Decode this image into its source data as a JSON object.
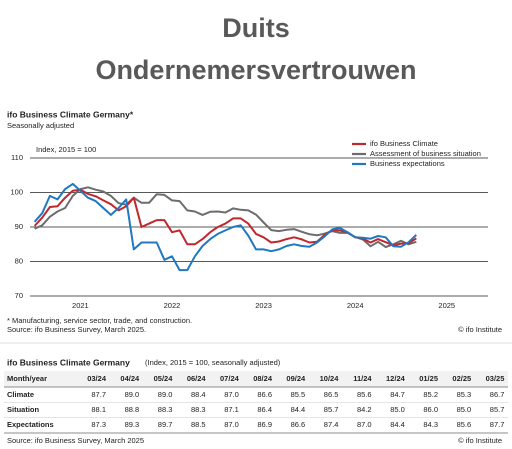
{
  "header": {
    "title_line1": "Duits",
    "title_line2": "Ondernemersvertrouwen"
  },
  "chart_data": {
    "type": "line",
    "title": "ifo Business Climate Germany*",
    "subtitle": "Seasonally adjusted",
    "y_label": "Index, 2015 = 100",
    "footnote": "* Manufacturing, service sector, trade, and construction.",
    "source": "Source: ifo Business Survey, March 2025.",
    "credit": "© ifo Institute",
    "x": [
      2021,
      2021.083,
      2021.167,
      2021.25,
      2021.333,
      2021.417,
      2021.5,
      2021.583,
      2021.667,
      2021.75,
      2021.833,
      2021.917,
      2022,
      2022.083,
      2022.167,
      2022.25,
      2022.333,
      2022.417,
      2022.5,
      2022.583,
      2022.667,
      2022.75,
      2022.833,
      2022.917,
      2023,
      2023.083,
      2023.167,
      2023.25,
      2023.333,
      2023.417,
      2023.5,
      2023.583,
      2023.667,
      2023.75,
      2023.833,
      2023.917,
      2024,
      2024.083,
      2024.167,
      2024.25,
      2024.333,
      2024.417,
      2024.5,
      2024.583,
      2024.667,
      2024.75,
      2024.833,
      2024.917,
      2025,
      2025.083,
      2025.167
    ],
    "xlim": [
      2020.95,
      2025.95
    ],
    "xticks": [
      {
        "value": 2021.5,
        "label": "2021"
      },
      {
        "value": 2022.5,
        "label": "2022"
      },
      {
        "value": 2023.5,
        "label": "2023"
      },
      {
        "value": 2024.5,
        "label": "2024"
      },
      {
        "value": 2025.5,
        "label": "2025"
      }
    ],
    "ylim": [
      70,
      110
    ],
    "yticks": [
      70,
      80,
      90,
      100,
      110
    ],
    "grid": true,
    "series": [
      {
        "name": "ifo Business Climate",
        "color": "#c0282d",
        "values": [
          90.3,
          92.7,
          95.8,
          96,
          98.5,
          100.5,
          100.8,
          99.6,
          98.9,
          97.7,
          96.6,
          94.8,
          96,
          98.5,
          90,
          91,
          92,
          92,
          88.5,
          89,
          85,
          85,
          86.5,
          88.5,
          90,
          91,
          92.5,
          92.5,
          91,
          88,
          87,
          85.5,
          85.8,
          86.5,
          87,
          86.4,
          85.5,
          85.7,
          87.7,
          89.0,
          89.0,
          88.4,
          87.0,
          86.6,
          85.5,
          86.5,
          85.6,
          84.7,
          85.2,
          85.3,
          86.7
        ]
      },
      {
        "name": "Assessment of business situation",
        "color": "#6d6d6d",
        "values": [
          89.5,
          90.5,
          93,
          94.5,
          95.5,
          99,
          101,
          101.5,
          100.8,
          100.3,
          99,
          96.9,
          96.5,
          98.5,
          97,
          97,
          99.5,
          99.3,
          97.7,
          97.5,
          94.8,
          94.5,
          93.5,
          94.4,
          94.5,
          94.2,
          95.4,
          95,
          94.8,
          93.6,
          91.3,
          89.1,
          88.8,
          89.2,
          89.4,
          88.6,
          87.9,
          87.6,
          88.1,
          88.8,
          88.3,
          88.3,
          87.1,
          86.4,
          84.4,
          85.7,
          84.2,
          85.0,
          86.0,
          85.0,
          85.7
        ]
      },
      {
        "name": "Business expectations",
        "color": "#1f78c1",
        "values": [
          91.5,
          94,
          99,
          98,
          101,
          102.5,
          100.5,
          98.5,
          97.5,
          95.5,
          93.5,
          95.5,
          98,
          83.5,
          85.5,
          85.5,
          85.5,
          80.5,
          81.5,
          77.5,
          77.5,
          81.5,
          84.5,
          86.5,
          88,
          89,
          90,
          90.5,
          87.5,
          83.5,
          83.5,
          83,
          83.5,
          84.5,
          85,
          84.5,
          84.3,
          85.5,
          87.3,
          89.3,
          89.7,
          88.5,
          87.0,
          86.9,
          86.6,
          87.4,
          87.0,
          84.4,
          84.3,
          85.6,
          87.7
        ]
      }
    ]
  },
  "table": {
    "title": "ifo Business Climate Germany",
    "subtitle": "(Index, 2015 = 100, seasonally adjusted)",
    "columns": [
      "Month/year",
      "03/24",
      "04/24",
      "05/24",
      "06/24",
      "07/24",
      "08/24",
      "09/24",
      "10/24",
      "11/24",
      "12/24",
      "01/25",
      "02/25",
      "03/25"
    ],
    "rows": [
      [
        "Climate",
        "87.7",
        "89.0",
        "89.0",
        "88.4",
        "87.0",
        "86.6",
        "85.5",
        "86.5",
        "85.6",
        "84.7",
        "85.2",
        "85.3",
        "86.7"
      ],
      [
        "Situation",
        "88.1",
        "88.8",
        "88.3",
        "88.3",
        "87.1",
        "86.4",
        "84.4",
        "85.7",
        "84.2",
        "85.0",
        "86.0",
        "85.0",
        "85.7"
      ],
      [
        "Expectations",
        "87.3",
        "89.3",
        "89.7",
        "88.5",
        "87.0",
        "86.9",
        "86.6",
        "87.4",
        "87.0",
        "84.4",
        "84.3",
        "85.6",
        "87.7"
      ]
    ],
    "source": "Source: ifo Business Survey, March 2025",
    "credit": "© ifo Institute"
  }
}
